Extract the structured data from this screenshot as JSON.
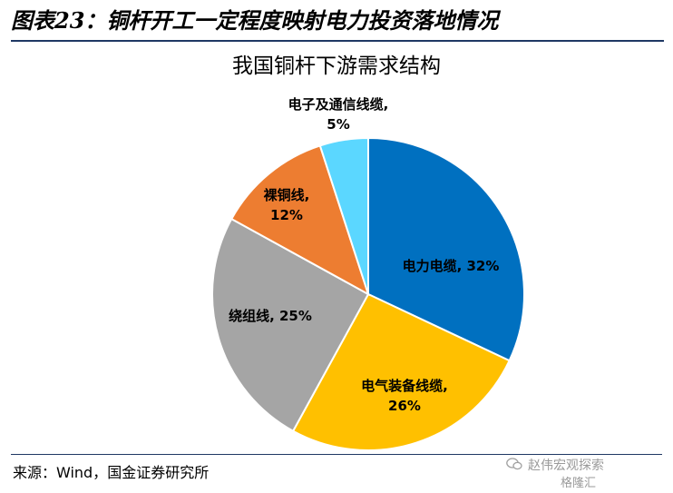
{
  "header": {
    "title": "图表23：铜杆开工一定程度映射电力投资落地情况"
  },
  "chart_data": {
    "type": "pie",
    "title": "我国铜杆下游需求结构",
    "slices": [
      {
        "label": "电力电缆",
        "value": 32,
        "value_text": "32%",
        "color": "#0070c0"
      },
      {
        "label": "电气装备线缆",
        "value": 26,
        "value_text": "26%",
        "color": "#ffc000"
      },
      {
        "label": "绕组线",
        "value": 25,
        "value_text": "25%",
        "color": "#a5a5a5"
      },
      {
        "label": "裸铜线",
        "value": 12,
        "value_text": "12%",
        "color": "#ed7d31"
      },
      {
        "label": "电子及通信线缆",
        "value": 5,
        "value_text": "5%",
        "color": "#5bd7ff"
      }
    ]
  },
  "footer": {
    "source": "来源：Wind，国金证券研究所"
  },
  "watermark": {
    "line1": "赵伟宏观探索",
    "line2": "格隆汇",
    "icon": "wechat-icon"
  }
}
